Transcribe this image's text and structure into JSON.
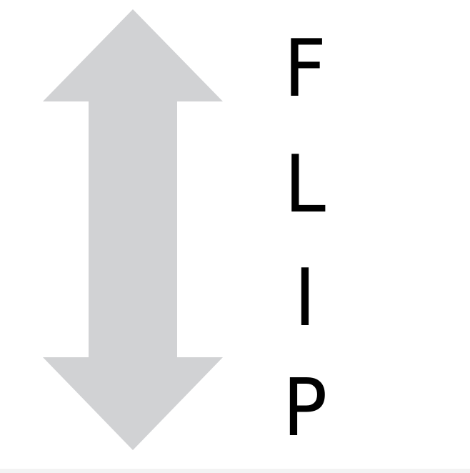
{
  "icon": "vertical-double-arrow-icon",
  "word": "FLIP",
  "letters": [
    "F",
    "L",
    "I",
    "P"
  ],
  "colors": {
    "arrow": "#d1d2d4",
    "text": "#000000",
    "background": "#ffffff"
  }
}
